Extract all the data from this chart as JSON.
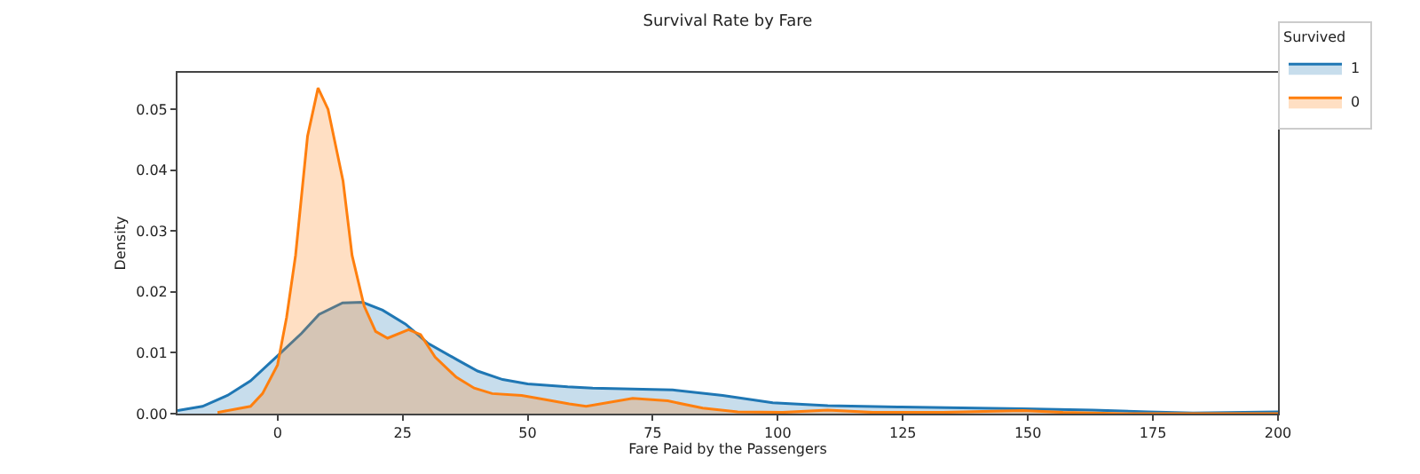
{
  "chart_data": {
    "type": "area",
    "title": "Survival Rate by Fare",
    "xlabel": "Fare Paid by the Passengers",
    "ylabel": "Density",
    "legend_title": "Survived",
    "legend": "top right",
    "series": [
      {
        "name": "1",
        "color": "#1f77b4",
        "x": [
          -20,
          -15,
          -10,
          -5.4,
          0,
          4.8,
          8.3,
          13,
          17,
          21,
          25.6,
          30,
          36,
          40,
          45,
          50,
          58,
          63,
          79,
          89,
          99,
          110,
          124,
          149,
          163,
          174,
          183,
          200
        ],
        "values": [
          0.0005,
          0.0012,
          0.003,
          0.0054,
          0.0095,
          0.0132,
          0.0163,
          0.0182,
          0.0183,
          0.017,
          0.0147,
          0.0116,
          0.0088,
          0.007,
          0.0056,
          0.0049,
          0.0044,
          0.0042,
          0.0039,
          0.003,
          0.0018,
          0.0013,
          0.0011,
          0.0008,
          0.0006,
          0.0003,
          0.0001,
          0.0003
        ]
      },
      {
        "name": "0",
        "color": "#ff7f0e",
        "x": [
          -12,
          -5.4,
          -3,
          0,
          1.8,
          3.6,
          6,
          8.1,
          10.1,
          13.1,
          14.9,
          17.3,
          19.6,
          22,
          26.2,
          28.6,
          31.5,
          35.7,
          39.3,
          42.9,
          48.8,
          53.6,
          58.3,
          61.7,
          71,
          78,
          85,
          92,
          101,
          110,
          119,
          133,
          149,
          157,
          169,
          200
        ],
        "values": [
          0.0002,
          0.0012,
          0.0033,
          0.008,
          0.0158,
          0.026,
          0.0456,
          0.0535,
          0.05,
          0.0382,
          0.026,
          0.0177,
          0.0135,
          0.0124,
          0.0138,
          0.013,
          0.0093,
          0.006,
          0.0042,
          0.0033,
          0.003,
          0.0023,
          0.0016,
          0.0012,
          0.0025,
          0.0021,
          0.0009,
          0.0003,
          0.0002,
          0.0006,
          0.0002,
          0.0002,
          0.0005,
          0.0002,
          0,
          0
        ]
      }
    ],
    "xlim": [
      -20,
      200
    ],
    "xticks": [
      0,
      25,
      50,
      75,
      100,
      125,
      150,
      175,
      200
    ],
    "ylim": [
      0,
      0.056
    ],
    "yticks": [
      {
        "value": 0,
        "label": "0.00"
      },
      {
        "value": 0.01,
        "label": "0.01"
      },
      {
        "value": 0.02,
        "label": "0.02"
      },
      {
        "value": 0.03,
        "label": "0.03"
      },
      {
        "value": 0.04,
        "label": "0.04"
      },
      {
        "value": 0.05,
        "label": "0.05"
      }
    ]
  }
}
